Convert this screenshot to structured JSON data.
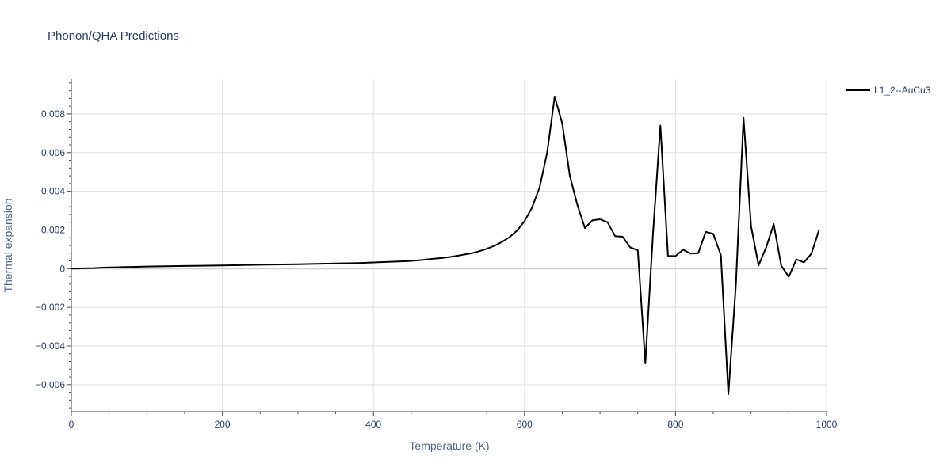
{
  "chart_data": {
    "type": "line",
    "title": "Phonon/QHA Predictions",
    "xlabel": "Temperature (K)",
    "ylabel": "Thermal expansion",
    "xlim": [
      0,
      1000
    ],
    "ylim": [
      -0.0074,
      0.0098
    ],
    "xticks": [
      0,
      200,
      400,
      600,
      800,
      1000
    ],
    "xtick_labels": [
      "0",
      "200",
      "400",
      "600",
      "800",
      "1000"
    ],
    "yticks": [
      -0.006,
      -0.004,
      -0.002,
      0,
      0.002,
      0.004,
      0.006,
      0.008
    ],
    "ytick_labels": [
      "−0.006",
      "−0.004",
      "−0.002",
      "0",
      "0.002",
      "0.004",
      "0.006",
      "0.008"
    ],
    "grid": true,
    "legend_position": "top-right",
    "colors": {
      "series": "#000000",
      "grid": "#e0e0e0",
      "zero_line": "#d0d0d0",
      "axis": "#444444",
      "text": "#2a3f5f"
    },
    "series": [
      {
        "name": "L1_2--AuCu3",
        "x": [
          0,
          10,
          20,
          30,
          40,
          50,
          60,
          70,
          80,
          90,
          100,
          150,
          200,
          250,
          300,
          350,
          380,
          400,
          420,
          440,
          450,
          460,
          470,
          480,
          490,
          500,
          510,
          520,
          530,
          540,
          550,
          560,
          570,
          580,
          590,
          600,
          610,
          620,
          630,
          640,
          650,
          660,
          670,
          680,
          690,
          700,
          710,
          720,
          730,
          740,
          750,
          760,
          770,
          780,
          790,
          800,
          810,
          820,
          830,
          840,
          850,
          860,
          870,
          880,
          890,
          900,
          910,
          920,
          930,
          940,
          950,
          960,
          970,
          980,
          990
        ],
        "y": [
          0,
          1e-05,
          2e-05,
          3e-05,
          5e-05,
          6e-05,
          7e-05,
          8e-05,
          9e-05,
          0.0001,
          0.00011,
          0.00014,
          0.00017,
          0.0002,
          0.00023,
          0.00027,
          0.00029,
          0.00032,
          0.00035,
          0.00038,
          0.0004,
          0.00043,
          0.00047,
          0.00051,
          0.00055,
          0.0006,
          0.00066,
          0.00073,
          0.0008,
          0.0009,
          0.00103,
          0.00118,
          0.00138,
          0.00162,
          0.00196,
          0.00245,
          0.00315,
          0.0042,
          0.006,
          0.0089,
          0.0075,
          0.0048,
          0.0033,
          0.0021,
          0.0025,
          0.00255,
          0.0024,
          0.00168,
          0.00165,
          0.0011,
          0.00095,
          -0.0049,
          0.0017,
          0.0074,
          0.00065,
          0.00065,
          0.00098,
          0.00078,
          0.0008,
          0.0019,
          0.0018,
          0.0007,
          -0.0065,
          -0.0008,
          0.0078,
          0.0022,
          0.00017,
          0.0011,
          0.0023,
          0.00015,
          -0.00042,
          0.00048,
          0.00032,
          0.00078,
          0.002
        ]
      }
    ]
  }
}
